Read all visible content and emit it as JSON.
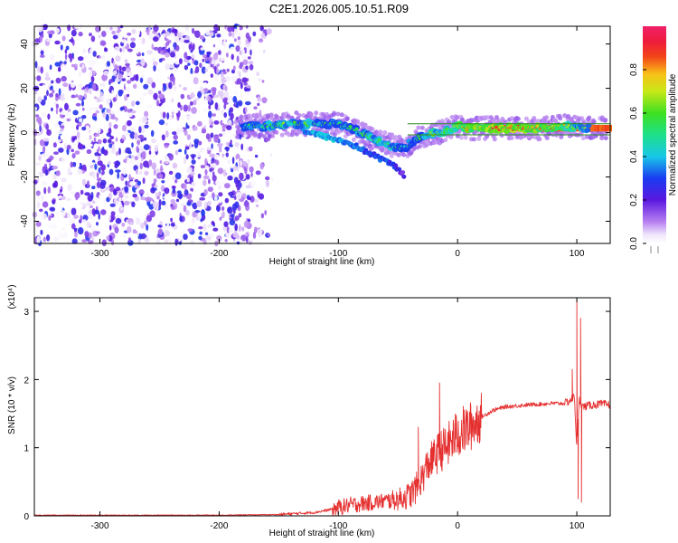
{
  "title": "C2E1.2026.005.10.51.R09",
  "colors": {
    "axis": "#000000",
    "snr_line": "#e53030",
    "spectral_base": "#7a24e6",
    "ridge": "#2b8a1f"
  },
  "chart_data": [
    {
      "name": "spectrogram",
      "type": "heatmap",
      "xlabel": "Height of straight line (km)",
      "ylabel": "Frequency (Hz)",
      "xlim": [
        -355,
        128
      ],
      "ylim": [
        -50,
        48
      ],
      "xticks": [
        -300,
        -200,
        -100,
        0,
        100
      ],
      "yticks": [
        -40,
        -20,
        0,
        20,
        40
      ],
      "colorbar": {
        "label": "Normalized spectral amplitude",
        "range": [
          0.0,
          1.0
        ],
        "ticks": [
          0.0,
          0.2,
          0.4,
          0.6,
          0.8
        ],
        "tick_labels": [
          "0.0",
          "0.2",
          "0.4",
          "0.6",
          "0.8"
        ],
        "scheme": "rainbow (white-purple-blue-cyan-green-yellow-red-magenta)"
      },
      "noise_region": {
        "x_range": [
          -355,
          -155
        ],
        "y_range": [
          -50,
          48
        ],
        "amplitude_range": [
          0.0,
          0.3
        ]
      },
      "ridge": {
        "x": [
          -180,
          -160,
          -140,
          -120,
          -100,
          -85,
          -70,
          -55,
          -45,
          -35,
          -25,
          -15,
          -5,
          0,
          10,
          30,
          50,
          70,
          90,
          100,
          128
        ],
        "y": [
          3,
          3,
          4,
          4,
          4,
          1,
          -3,
          -6,
          -7,
          -3,
          -1,
          0,
          2,
          3,
          2,
          2,
          2,
          2,
          3,
          2,
          2
        ],
        "amplitude": [
          0.5,
          0.55,
          0.6,
          0.55,
          0.5,
          0.55,
          0.6,
          0.55,
          0.5,
          0.55,
          0.6,
          0.65,
          0.7,
          0.75,
          0.8,
          0.85,
          0.85,
          0.8,
          0.75,
          0.6,
          0.6
        ]
      },
      "secondary_trace": {
        "x": [
          -130,
          -110,
          -90,
          -75,
          -60,
          -50,
          -45
        ],
        "y": [
          1,
          -2,
          -5,
          -9,
          -13,
          -16,
          -19
        ],
        "amplitude": [
          0.35,
          0.4,
          0.35,
          0.3,
          0.3,
          0.25,
          0.2
        ]
      },
      "steady_band": {
        "x_range": [
          25,
          128
        ],
        "y_range": [
          0.5,
          3.5
        ],
        "amplitude": 0.85
      },
      "guide_lines_y": [
        -1,
        4
      ]
    },
    {
      "name": "snr",
      "type": "line",
      "xlabel": "Height of straight line (km)",
      "ylabel": "SNR (10 * v/v)",
      "multiplier": "(x10⁴)",
      "xlim": [
        -355,
        128
      ],
      "ylim": [
        0,
        3.2
      ],
      "xticks": [
        -300,
        -200,
        -100,
        0,
        100
      ],
      "yticks": [
        0,
        1,
        2,
        3
      ],
      "series": [
        {
          "x": [
            -355,
            -300,
            -250,
            -200,
            -150,
            -120,
            -110,
            -100,
            -90,
            -80,
            -70,
            -60,
            -50,
            -40,
            -35,
            -30,
            -25,
            -20,
            -15,
            -10,
            -5,
            0,
            10,
            20,
            30,
            40,
            60,
            80,
            90,
            95,
            98,
            100,
            102,
            105,
            110,
            120,
            128
          ],
          "y": [
            0.01,
            0.01,
            0.01,
            0.01,
            0.02,
            0.05,
            0.08,
            0.12,
            0.16,
            0.18,
            0.2,
            0.22,
            0.24,
            0.3,
            0.4,
            0.55,
            0.75,
            0.85,
            0.95,
            1.0,
            1.1,
            1.2,
            1.3,
            1.45,
            1.55,
            1.6,
            1.63,
            1.65,
            1.65,
            1.7,
            1.75,
            1.0,
            1.7,
            1.6,
            1.62,
            1.64,
            1.63
          ]
        }
      ],
      "spikes": [
        {
          "x": -15,
          "y": 1.95
        },
        {
          "x": -33,
          "y": 1.3
        },
        {
          "x": 96,
          "y": 2.15
        },
        {
          "x": 100,
          "y": 3.2
        },
        {
          "x": 101,
          "y": 0.25
        },
        {
          "x": 103,
          "y": 2.9
        },
        {
          "x": 104,
          "y": 0.2
        }
      ]
    }
  ]
}
